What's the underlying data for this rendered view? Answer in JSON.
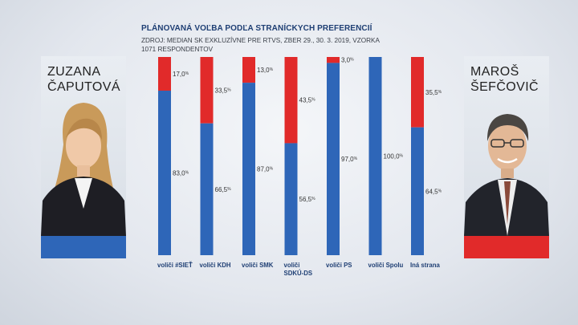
{
  "chart_data": {
    "type": "bar",
    "stacked": true,
    "title": "PLÁNOVANÁ VOĽBA PODĽA STRANÍCKYCH PREFERENCIÍ",
    "subtitle": "ZDROJ: MEDIAN SK EXKLUZÍVNE PRE RTVS, ZBER 29., 30. 3. 2019, VZORKA 1071 RESPONDENTOV",
    "categories": [
      [
        "voliči #SIEŤ"
      ],
      [
        "voliči KDH"
      ],
      [
        "voliči SMK"
      ],
      [
        "voliči",
        "SDKÚ-DS"
      ],
      [
        "voliči PS"
      ],
      [
        "voliči Spolu"
      ],
      [
        "Iná strana"
      ]
    ],
    "series": [
      {
        "name": "ZUZANA ČAPUTOVÁ",
        "color": "#2e66b8",
        "values": [
          83.0,
          66.5,
          87.0,
          56.5,
          97.0,
          100.0,
          64.5
        ]
      },
      {
        "name": "MAROŠ ŠEFČOVIČ",
        "color": "#e12a2a",
        "values": [
          17.0,
          33.5,
          13.0,
          43.5,
          3.0,
          0.0,
          35.5
        ]
      }
    ],
    "labels": {
      "blue": [
        "83,0",
        "66,5",
        "87,0",
        "56,5",
        "97,0",
        "100,0",
        "64,5"
      ],
      "red": [
        "17,0",
        "33,5",
        "13,0",
        "43,5",
        "3,0",
        "",
        "35,5"
      ]
    },
    "percent_sign": "%",
    "ylim": [
      0,
      100
    ]
  },
  "candidates": {
    "left": {
      "name": "ZUZANA\nČAPUTOVÁ",
      "icon": "portrait-woman-icon"
    },
    "right": {
      "name": "MAROŠ\nŠEFČOVIČ",
      "icon": "portrait-man-icon"
    }
  }
}
